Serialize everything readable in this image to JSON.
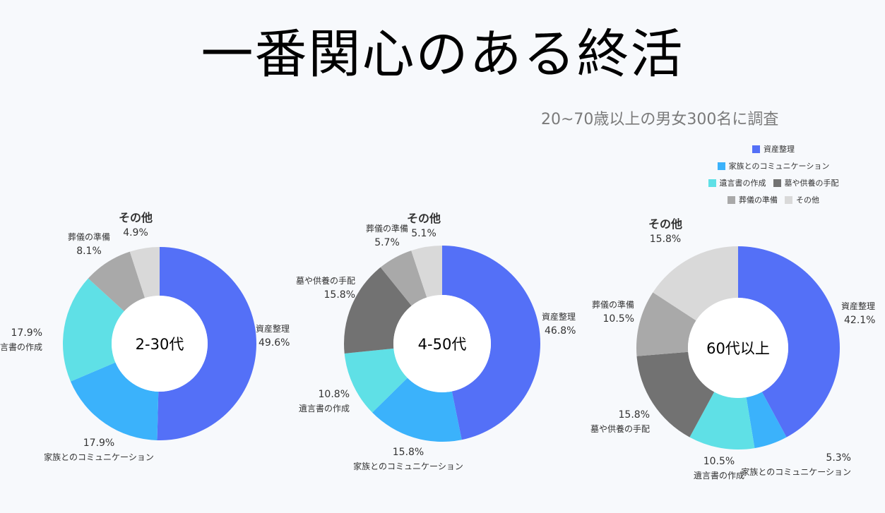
{
  "title": "一番関心のある終活",
  "subtitle": "20~70歳以上の男女300名に調査",
  "legend": [
    "資産整理",
    "家族とのコミュニケーション",
    "遺言書の作成",
    "墓や供養の手配",
    "葬儀の準備",
    "その他"
  ],
  "colors": [
    "#5470f7",
    "#3bb2fb",
    "#5fe0e6",
    "#727272",
    "#a9a9a9",
    "#d9d9d9"
  ],
  "chart_data": [
    {
      "type": "pie",
      "center_label": "2-30代",
      "categories": [
        "資産整理",
        "家族とのコミュニケーション",
        "遺言書の作成",
        "墓や供養の手配",
        "葬儀の準備",
        "その他"
      ],
      "values": [
        49.6,
        17.9,
        17.9,
        0,
        8.1,
        4.9
      ],
      "value_labels": [
        "49.6%",
        "17.9%",
        "17.9%",
        "",
        "8.1%",
        "4.9%"
      ]
    },
    {
      "type": "pie",
      "center_label": "4-50代",
      "categories": [
        "資産整理",
        "家族とのコミュニケーション",
        "遺言書の作成",
        "墓や供養の手配",
        "葬儀の準備",
        "その他"
      ],
      "values": [
        46.8,
        15.8,
        10.8,
        15.8,
        5.7,
        5.1
      ],
      "value_labels": [
        "46.8%",
        "15.8%",
        "10.8%",
        "15.8%",
        "5.7%",
        "5.1%"
      ]
    },
    {
      "type": "pie",
      "center_label": "60代以上",
      "categories": [
        "資産整理",
        "家族とのコミュニケーション",
        "遺言書の作成",
        "墓や供養の手配",
        "葬儀の準備",
        "その他"
      ],
      "values": [
        42.1,
        5.3,
        10.5,
        15.8,
        10.5,
        15.8
      ],
      "value_labels": [
        "42.1%",
        "5.3%",
        "10.5%",
        "15.8%",
        "10.5%",
        "15.8%"
      ]
    }
  ]
}
